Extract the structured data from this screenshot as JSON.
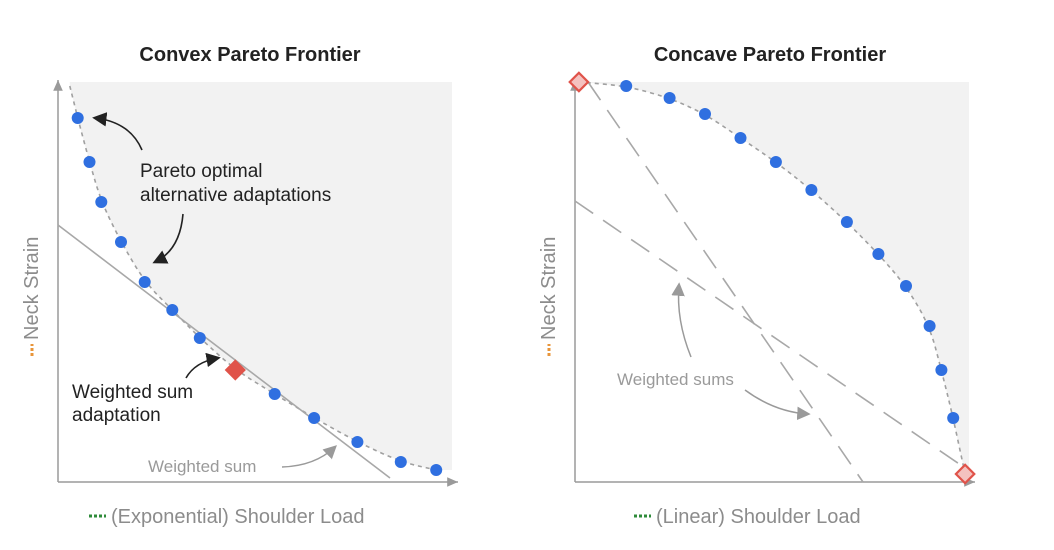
{
  "colors": {
    "region": "#f2f2f2",
    "axis": "#9a9a9a",
    "point": "#2f6fe0",
    "diamond_fill": "#e0534a",
    "diamond_hollow_fill": "#f4c2c0",
    "diamond_stroke": "#e0534a",
    "frontier": "#a0a0a0",
    "weighted_line": "#a8a8a8",
    "dashed_line": "#a8a8a8",
    "neck_marker": "#e8953a",
    "shoulder_marker": "#2e8b3a",
    "arrow_dark": "#222222",
    "arrow_gray": "#9a9a9a"
  },
  "left_panel": {
    "title": "Convex Pareto Frontier",
    "y_label": "Neck Strain",
    "x_label": "(Exponential) Shoulder Load",
    "pareto_label_line1": "Pareto optimal",
    "pareto_label_line2": "alternative adaptations",
    "weighted_label_line1": "Weighted sum",
    "weighted_label_line2": "adaptation",
    "weighted_line_label": "Weighted sum"
  },
  "right_panel": {
    "title": "Concave Pareto Frontier",
    "y_label": "Neck Strain",
    "x_label": "(Linear) Shoulder Load",
    "weighted_sums_label": "Weighted sums"
  },
  "chart_data": [
    {
      "type": "scatter",
      "title": "Convex Pareto Frontier",
      "xlabel": "(Exponential) Shoulder Load",
      "ylabel": "Neck Strain",
      "xlim": [
        0,
        1
      ],
      "ylim": [
        0,
        1
      ],
      "frontier": "convex",
      "points": [
        {
          "x": 0.05,
          "y": 0.91
        },
        {
          "x": 0.08,
          "y": 0.8
        },
        {
          "x": 0.11,
          "y": 0.7
        },
        {
          "x": 0.16,
          "y": 0.6
        },
        {
          "x": 0.22,
          "y": 0.5
        },
        {
          "x": 0.29,
          "y": 0.43
        },
        {
          "x": 0.36,
          "y": 0.36
        },
        {
          "x": 0.45,
          "y": 0.28
        },
        {
          "x": 0.55,
          "y": 0.22
        },
        {
          "x": 0.65,
          "y": 0.16
        },
        {
          "x": 0.76,
          "y": 0.1
        },
        {
          "x": 0.87,
          "y": 0.05
        },
        {
          "x": 0.96,
          "y": 0.03
        }
      ],
      "weighted_sum_point": {
        "x": 0.45,
        "y": 0.28
      }
    },
    {
      "type": "scatter",
      "title": "Concave Pareto Frontier",
      "xlabel": "(Linear) Shoulder Load",
      "ylabel": "Neck Strain",
      "xlim": [
        0,
        1
      ],
      "ylim": [
        0,
        1
      ],
      "frontier": "concave",
      "points": [
        {
          "x": 0.13,
          "y": 0.99
        },
        {
          "x": 0.24,
          "y": 0.96
        },
        {
          "x": 0.33,
          "y": 0.92
        },
        {
          "x": 0.42,
          "y": 0.86
        },
        {
          "x": 0.51,
          "y": 0.8
        },
        {
          "x": 0.6,
          "y": 0.73
        },
        {
          "x": 0.69,
          "y": 0.65
        },
        {
          "x": 0.77,
          "y": 0.57
        },
        {
          "x": 0.84,
          "y": 0.49
        },
        {
          "x": 0.9,
          "y": 0.39
        },
        {
          "x": 0.93,
          "y": 0.28
        },
        {
          "x": 0.96,
          "y": 0.16
        }
      ],
      "weighted_sum_points": [
        {
          "x": 0.01,
          "y": 1.0
        },
        {
          "x": 0.99,
          "y": 0.02
        }
      ]
    }
  ]
}
